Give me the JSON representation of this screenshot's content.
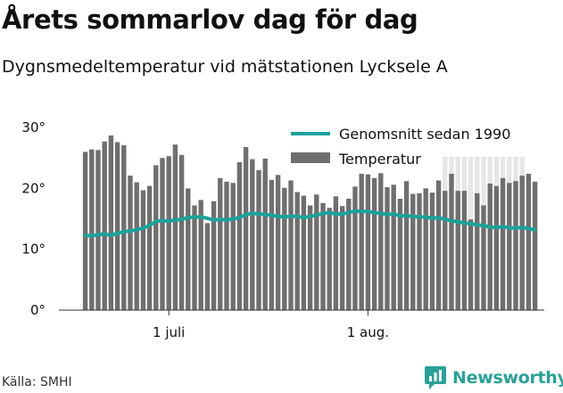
{
  "title": "Årets sommarlov dag för dag",
  "subtitle": "Dygnsmedeltemperatur vid mätstationen Lycksele A",
  "source": "Källa: SMHI",
  "brand": {
    "name": "Newsworthy",
    "icon": "newsworthy-chart-logo-icon",
    "color": "#2aa198"
  },
  "chart_data": {
    "type": "bar",
    "ylim": [
      0,
      30
    ],
    "yticks": [
      {
        "value": 0,
        "label": "0°"
      },
      {
        "value": 10,
        "label": "10°"
      },
      {
        "value": 20,
        "label": "20°"
      },
      {
        "value": 30,
        "label": "30°"
      }
    ],
    "xticks": [
      {
        "day_index": 13,
        "label": "1 juli"
      },
      {
        "day_index": 44,
        "label": "1 aug."
      }
    ],
    "grid": false,
    "legend_position": "top-right",
    "colors": {
      "bars": "#6f6f6f",
      "line": "#1aa39a",
      "future": "#e6e6e6"
    },
    "series": [
      {
        "name": "Temperatur",
        "kind": "bar",
        "values": [
          26.0,
          26.4,
          26.3,
          27.7,
          28.7,
          27.6,
          27.1,
          22.1,
          21.0,
          19.7,
          20.4,
          23.8,
          25.0,
          25.3,
          27.2,
          25.5,
          20.0,
          17.2,
          18.1,
          14.3,
          17.9,
          21.7,
          21.1,
          20.9,
          24.3,
          26.8,
          24.8,
          23.0,
          24.9,
          21.4,
          22.2,
          20.1,
          21.3,
          19.4,
          18.8,
          17.2,
          19.0,
          17.6,
          16.8,
          18.7,
          17.1,
          18.3,
          20.3,
          22.4,
          22.3,
          21.7,
          22.5,
          20.2,
          20.6,
          18.3,
          21.2,
          19.1,
          19.2,
          20.0,
          19.3,
          21.3,
          19.6,
          22.4,
          19.6,
          19.6,
          14.9,
          19.2,
          17.2,
          20.8,
          20.4,
          21.7,
          20.9,
          21.2,
          22.1,
          22.4,
          21.1
        ],
        "future_days": [
          56,
          68
        ]
      },
      {
        "name": "Genomsnitt sedan 1990",
        "kind": "line",
        "values": [
          12.3,
          12.2,
          12.4,
          12.5,
          12.3,
          12.6,
          12.9,
          13.0,
          13.2,
          13.5,
          13.9,
          14.6,
          14.7,
          14.6,
          14.8,
          14.9,
          15.2,
          15.3,
          15.3,
          15.1,
          14.8,
          14.9,
          14.8,
          15.0,
          15.2,
          15.7,
          15.9,
          15.8,
          15.7,
          15.6,
          15.4,
          15.3,
          15.4,
          15.4,
          15.2,
          15.4,
          15.6,
          15.9,
          16.0,
          15.8,
          15.8,
          16.0,
          16.3,
          16.2,
          16.2,
          16.0,
          15.9,
          15.7,
          15.8,
          15.5,
          15.5,
          15.4,
          15.3,
          15.3,
          15.1,
          15.2,
          14.9,
          14.7,
          14.5,
          14.3,
          14.2,
          14.0,
          13.9,
          13.6,
          13.6,
          13.7,
          13.5,
          13.5,
          13.6,
          13.4,
          13.2
        ]
      }
    ]
  }
}
